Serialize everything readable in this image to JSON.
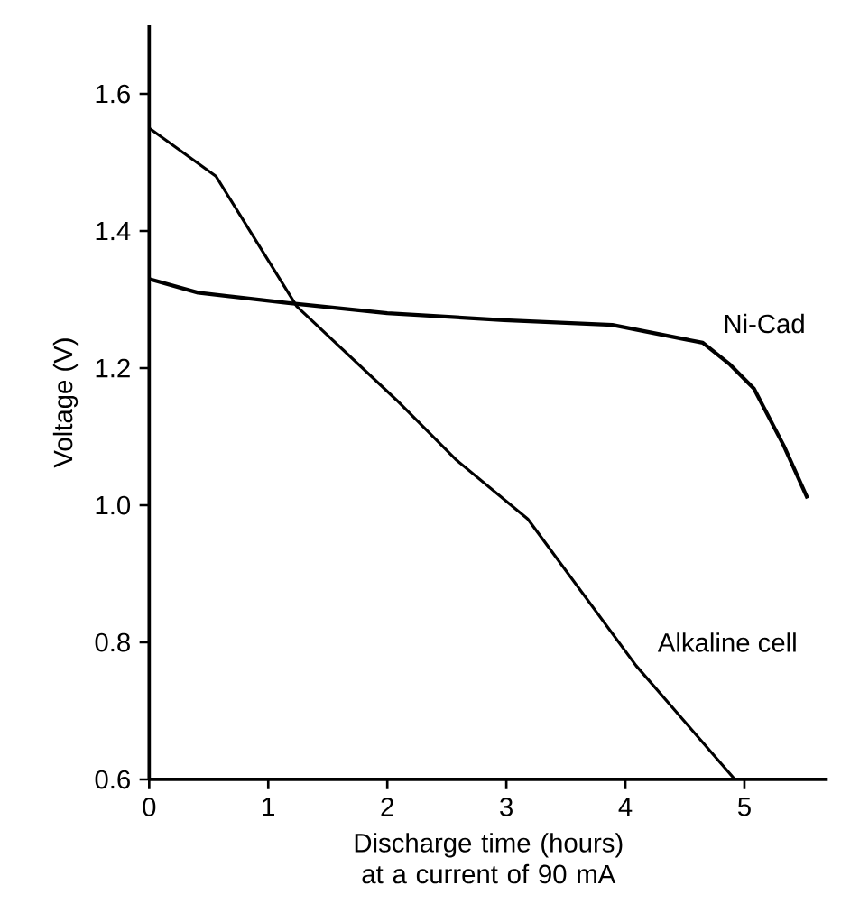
{
  "chart_data": {
    "type": "line",
    "xlabel": "Discharge time (hours) at a current of 90 mA",
    "ylabel": "Voltage (V)",
    "xlim": [
      0,
      5.7
    ],
    "ylim": [
      0.6,
      1.7
    ],
    "xticks": [
      0,
      1,
      2,
      3,
      4,
      5
    ],
    "yticks": [
      0.6,
      0.8,
      {
        "value": 1,
        "label": "1.0"
      },
      1.2,
      1.4,
      1.6
    ],
    "grid": false,
    "legend": false,
    "marker": "none",
    "line_style": "solid",
    "series": [
      {
        "name": "Ni-Cad",
        "color": "#000000",
        "x": [
          0,
          0.41,
          1.17,
          2.0,
          2.98,
          3.89,
          4.65,
          4.88,
          5.08,
          5.33,
          5.53
        ],
        "values": [
          1.33,
          1.31,
          1.295,
          1.28,
          1.27,
          1.263,
          1.237,
          1.205,
          1.17,
          1.087,
          1.01
        ]
      },
      {
        "name": "Alkaline cell",
        "color": "#000000",
        "x": [
          0,
          0.56,
          1.24,
          2.08,
          2.58,
          3.18,
          4.09,
          4.92
        ],
        "values": [
          1.55,
          1.48,
          1.29,
          1.153,
          1.066,
          0.98,
          0.766,
          0.6
        ]
      }
    ]
  }
}
